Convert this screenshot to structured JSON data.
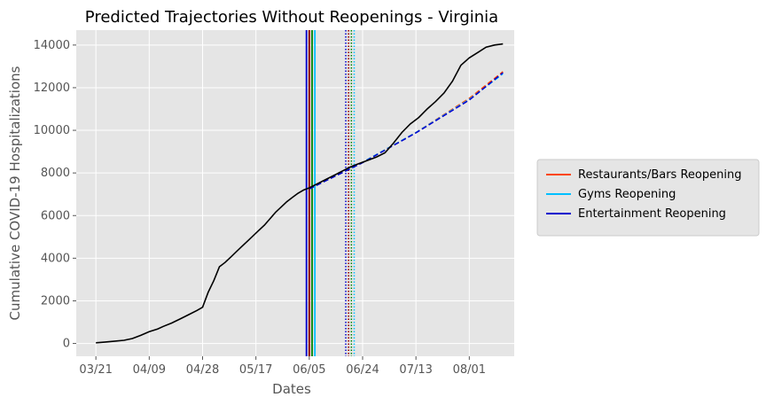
{
  "chart_data": {
    "type": "line",
    "title": "Predicted Trajectories Without Reopenings - Virginia",
    "xlabel": "Dates",
    "ylabel": "Cumulative COVID-19 Hospitalizations",
    "x_tick_labels": [
      "03/21",
      "04/09",
      "04/28",
      "05/17",
      "06/05",
      "06/24",
      "07/13",
      "08/01"
    ],
    "x_tick_days": [
      0,
      19,
      38,
      57,
      76,
      95,
      114,
      133
    ],
    "y_ticks": [
      0,
      2000,
      4000,
      6000,
      8000,
      10000,
      12000,
      14000
    ],
    "xlim_days": [
      -7,
      149
    ],
    "ylim": [
      -600,
      14700
    ],
    "grid": true,
    "legend_position": "right",
    "actual": {
      "color": "#000000",
      "x_days": [
        0,
        3,
        6,
        10,
        13,
        16,
        19,
        22,
        24,
        27,
        30,
        33,
        36,
        38,
        40,
        42,
        44,
        46,
        48,
        50,
        52,
        54,
        56,
        58,
        60,
        62,
        64,
        66,
        68,
        70,
        72,
        74,
        76,
        79,
        82,
        85,
        88,
        91,
        94,
        97,
        100,
        103,
        106,
        109,
        112,
        115,
        118,
        121,
        124,
        127,
        130,
        133,
        136,
        139,
        142,
        145
      ],
      "values": [
        30,
        60,
        100,
        150,
        230,
        380,
        550,
        680,
        800,
        960,
        1150,
        1350,
        1550,
        1700,
        2400,
        2950,
        3600,
        3800,
        4050,
        4300,
        4550,
        4800,
        5050,
        5300,
        5550,
        5850,
        6150,
        6400,
        6650,
        6850,
        7050,
        7200,
        7300,
        7500,
        7700,
        7900,
        8100,
        8300,
        8450,
        8600,
        8750,
        8950,
        9400,
        9900,
        10300,
        10600,
        11000,
        11350,
        11750,
        12300,
        13050,
        13400,
        13650,
        13900,
        14000,
        14050
      ]
    },
    "series": [
      {
        "name": "Restaurants/Bars Reopening",
        "color": "#ff4500",
        "reopen_day": 76,
        "end_day": 90,
        "x_days": [
          76,
          95,
          114,
          133,
          145
        ],
        "values": [
          7250,
          8500,
          9900,
          11500,
          12750
        ]
      },
      {
        "name": "Gyms Reopening",
        "color": "#00bfff",
        "reopen_day": 78,
        "end_day": 92,
        "x_days": [
          76,
          95,
          114,
          133,
          145
        ],
        "values": [
          7250,
          8500,
          9900,
          11450,
          12650
        ]
      },
      {
        "name": "Entertainment Reopening",
        "color": "#0000cd",
        "reopen_day": 75,
        "end_day": 89,
        "x_days": [
          76,
          95,
          114,
          133,
          145
        ],
        "values": [
          7250,
          8480,
          9880,
          11420,
          12700
        ]
      }
    ],
    "extra_markers": [
      {
        "color": "#008000",
        "day": 77,
        "style": "solid"
      },
      {
        "color": "#008000",
        "day": 91,
        "style": "dotted"
      },
      {
        "color": "#8b0000",
        "day": 76,
        "style": "solid"
      },
      {
        "color": "#8b0000",
        "day": 90,
        "style": "dotted"
      },
      {
        "color": "#800080",
        "day": 145,
        "style": "dashed-end"
      }
    ]
  }
}
